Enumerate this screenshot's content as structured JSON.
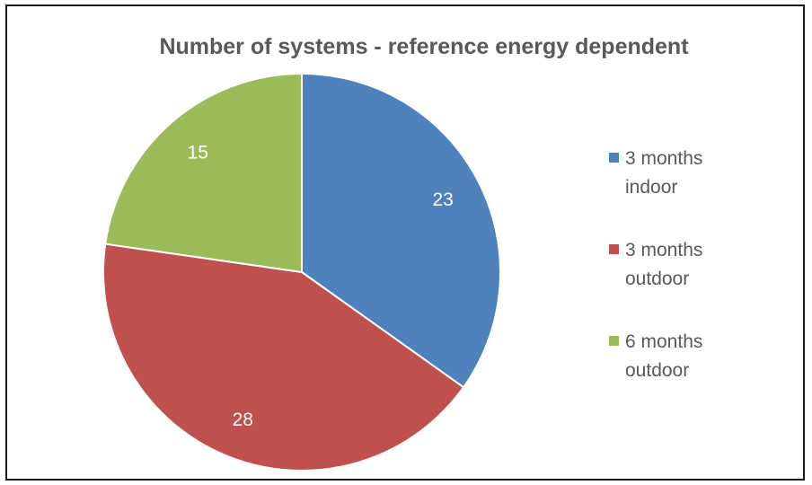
{
  "chart_data": {
    "type": "pie",
    "title": "Number of systems  - reference energy dependent",
    "categories": [
      "3 months indoor",
      "3 months outdoor",
      "6 months outdoor"
    ],
    "values": [
      23,
      28,
      15
    ],
    "data_labels": [
      "23",
      "28",
      "15"
    ],
    "colors": [
      "#4f81bd",
      "#c0504d",
      "#9bbb59"
    ],
    "legend": {
      "placement": "right",
      "entries": [
        {
          "line1": "3 months",
          "line2": "indoor"
        },
        {
          "line1": "3 months",
          "line2": "outdoor"
        },
        {
          "line1": "6 months",
          "line2": "outdoor"
        }
      ]
    },
    "start_angle": "12 o'clock",
    "direction": "clockwise"
  }
}
